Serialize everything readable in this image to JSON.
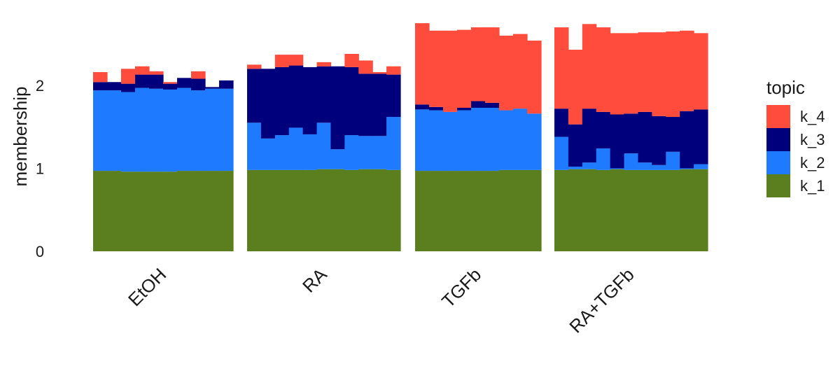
{
  "chart_data": {
    "type": "bar",
    "stacked": true,
    "xlabel": "",
    "ylabel": "membership",
    "ylim": [
      0,
      2.75
    ],
    "yticks": [
      0,
      1,
      2
    ],
    "grid": false,
    "legend": {
      "title": "topic",
      "position": "right"
    },
    "series": [
      {
        "name": "k_1",
        "color": "#5b7f1e"
      },
      {
        "name": "k_2",
        "color": "#1e7bff"
      },
      {
        "name": "k_3",
        "color": "#00007d"
      },
      {
        "name": "k_4",
        "color": "#ff4c3c"
      }
    ],
    "legend_order": [
      "k_4",
      "k_3",
      "k_2",
      "k_1"
    ],
    "groups": [
      {
        "label": "EtOH",
        "samples": [
          [
            0.97,
            0.97,
            0.1,
            0.12
          ],
          [
            0.97,
            0.97,
            0.1,
            0.0
          ],
          [
            0.96,
            0.96,
            0.1,
            0.18
          ],
          [
            0.96,
            1.01,
            0.16,
            0.1
          ],
          [
            0.96,
            1.0,
            0.17,
            0.04
          ],
          [
            0.96,
            0.99,
            0.07,
            0.02
          ],
          [
            0.97,
            1.0,
            0.12,
            0.0
          ],
          [
            0.97,
            0.97,
            0.14,
            0.09
          ],
          [
            0.97,
            0.99,
            0.02,
            0.0
          ],
          [
            0.97,
            0.99,
            0.1,
            0.0
          ]
        ]
      },
      {
        "label": "RA",
        "samples": [
          [
            0.98,
            0.57,
            0.65,
            0.05
          ],
          [
            0.98,
            0.38,
            0.84,
            0.0
          ],
          [
            0.98,
            0.42,
            0.82,
            0.15
          ],
          [
            0.98,
            0.51,
            0.75,
            0.13
          ],
          [
            0.98,
            0.43,
            0.81,
            0.0
          ],
          [
            0.99,
            0.56,
            0.68,
            0.05
          ],
          [
            0.99,
            0.24,
            1.0,
            0.0
          ],
          [
            0.98,
            0.42,
            0.82,
            0.16
          ],
          [
            0.99,
            0.4,
            0.75,
            0.16
          ],
          [
            0.99,
            0.4,
            0.75,
            0.02
          ],
          [
            0.98,
            0.64,
            0.51,
            0.1
          ]
        ]
      },
      {
        "label": "TGFb",
        "samples": [
          [
            0.97,
            0.74,
            0.06,
            0.98
          ],
          [
            0.97,
            0.73,
            0.04,
            0.92
          ],
          [
            0.97,
            0.71,
            0.0,
            0.98
          ],
          [
            0.97,
            0.73,
            0.03,
            0.94
          ],
          [
            0.97,
            0.76,
            0.08,
            0.89
          ],
          [
            0.97,
            0.76,
            0.06,
            0.91
          ],
          [
            0.98,
            0.72,
            0.0,
            0.9
          ],
          [
            0.98,
            0.74,
            0.0,
            0.9
          ],
          [
            0.98,
            0.68,
            0.0,
            0.88
          ]
        ]
      },
      {
        "label": "RA+TGFb",
        "samples": [
          [
            0.98,
            0.4,
            0.34,
            0.98
          ],
          [
            0.99,
            0.03,
            0.51,
            0.9
          ],
          [
            0.99,
            0.08,
            0.65,
            1.02
          ],
          [
            0.98,
            0.26,
            0.44,
            1.02
          ],
          [
            0.99,
            0.01,
            0.65,
            0.98
          ],
          [
            0.98,
            0.2,
            0.48,
            0.97
          ],
          [
            0.98,
            0.09,
            0.61,
            0.96
          ],
          [
            0.98,
            0.06,
            0.59,
            1.01
          ],
          [
            0.98,
            0.22,
            0.42,
            1.03
          ],
          [
            0.99,
            0.01,
            0.69,
            0.97
          ],
          [
            0.99,
            0.06,
            0.66,
            0.92
          ]
        ]
      }
    ]
  }
}
